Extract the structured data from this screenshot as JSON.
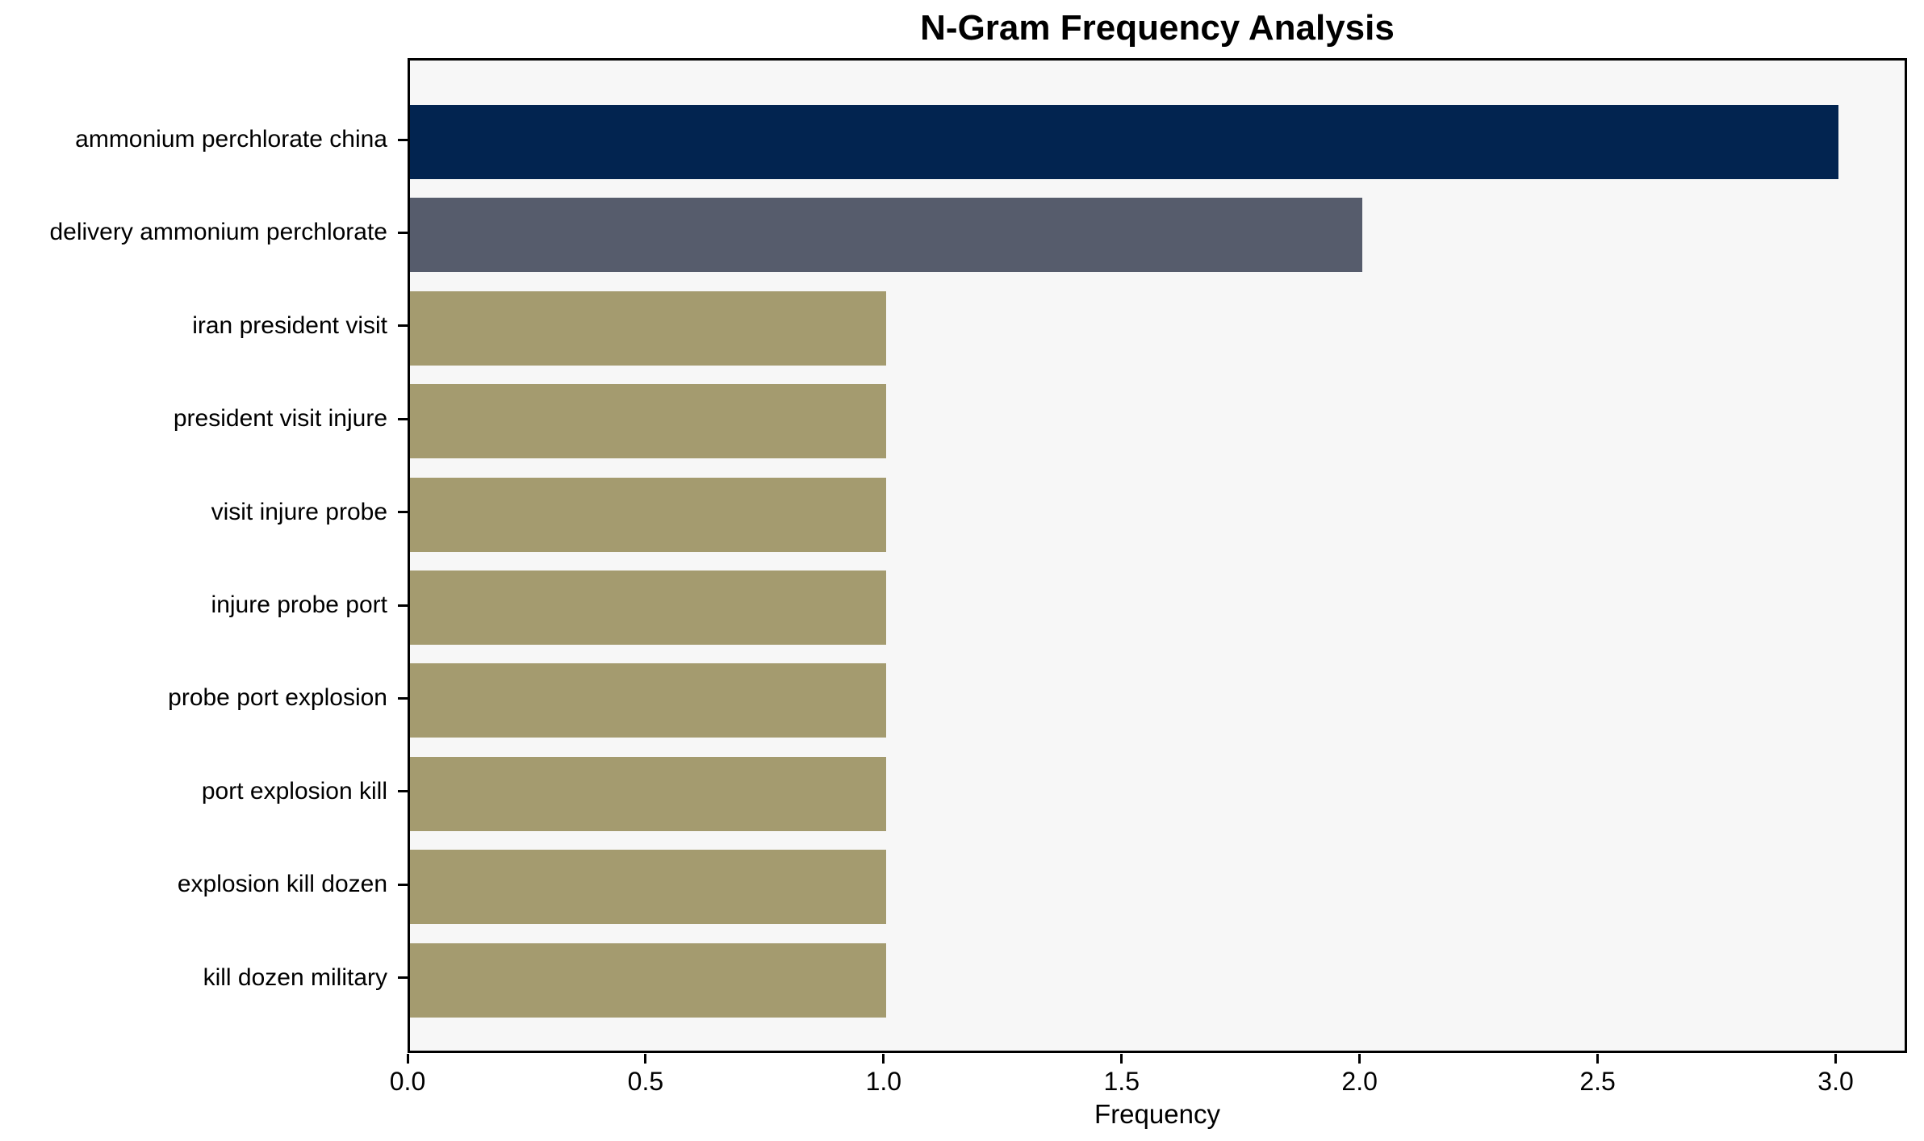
{
  "chart_data": {
    "type": "bar",
    "orientation": "horizontal",
    "title": "N-Gram Frequency Analysis",
    "xlabel": "Frequency",
    "ylabel": "",
    "categories": [
      "ammonium perchlorate china",
      "delivery ammonium perchlorate",
      "iran president visit",
      "president visit injure",
      "visit injure probe",
      "injure probe port",
      "probe port explosion",
      "port explosion kill",
      "explosion kill dozen",
      "kill dozen military"
    ],
    "values": [
      3,
      2,
      1,
      1,
      1,
      1,
      1,
      1,
      1,
      1
    ],
    "bar_colors": [
      "#022450",
      "#565c6c",
      "#a49b6f",
      "#a49b6f",
      "#a49b6f",
      "#a49b6f",
      "#a49b6f",
      "#a49b6f",
      "#a49b6f",
      "#a49b6f"
    ],
    "xlim": [
      0,
      3.15
    ],
    "xticks": [
      0.0,
      0.5,
      1.0,
      1.5,
      2.0,
      2.5,
      3.0
    ],
    "xtick_labels": [
      "0.0",
      "0.5",
      "1.0",
      "1.5",
      "2.0",
      "2.5",
      "3.0"
    ],
    "grid": false,
    "legend": null,
    "colors": {
      "figure_bg": "#ffffff",
      "plot_bg": "#f7f7f7",
      "spine": "#000000",
      "text": "#000000"
    }
  }
}
